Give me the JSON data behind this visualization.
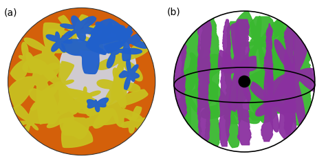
{
  "fig_width": 4.74,
  "fig_height": 2.37,
  "dpi": 100,
  "background_color": "#ffffff",
  "label_a": "(a)",
  "label_b": "(b)",
  "label_fontsize": 10,
  "label_color": "#000000",
  "panel_a": {
    "globe_color": "#d4600a",
    "plate_color": "#c8c020",
    "slab_color": "#2060cc",
    "inner_color": "#d0d8e8"
  },
  "panel_b": {
    "plume_green": "#3ab830",
    "plume_purple": "#8b30a0",
    "ring_lw": 1.2
  }
}
